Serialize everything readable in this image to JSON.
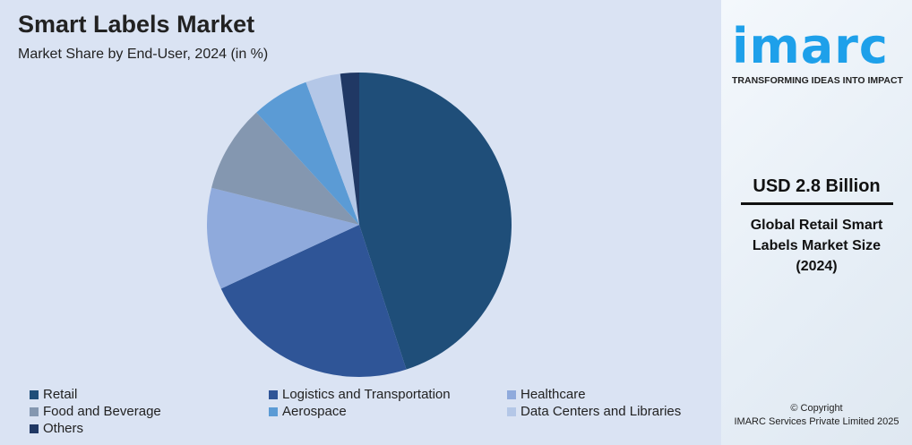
{
  "header": {
    "title": "Smart Labels Market",
    "subtitle": "Market Share by End-User, 2024 (in %)"
  },
  "chart_data": {
    "type": "pie",
    "start_angle": "12 o'clock, clockwise",
    "legend_position": "bottom",
    "categories": [
      "Retail",
      "Logistics and Transportation",
      "Healthcare",
      "Food and Beverage",
      "Aerospace",
      "Data Centers and Libraries",
      "Others"
    ],
    "values": [
      45.0,
      23.1,
      10.8,
      9.3,
      6.1,
      3.7,
      2.0
    ],
    "colors": [
      "#1f4e79",
      "#2f5597",
      "#8faadc",
      "#8497b0",
      "#5b9bd5",
      "#b4c7e7",
      "#203864"
    ]
  },
  "side": {
    "logo": "imarc",
    "tagline": "TRANSFORMING IDEAS INTO IMPACT",
    "value": "USD 2.8 Billion",
    "desc_lines": [
      "Global Retail Smart",
      "Labels Market Size",
      "(2024)"
    ],
    "copyright_lines": [
      "© Copyright",
      "IMARC Services Private Limited 2025"
    ]
  }
}
